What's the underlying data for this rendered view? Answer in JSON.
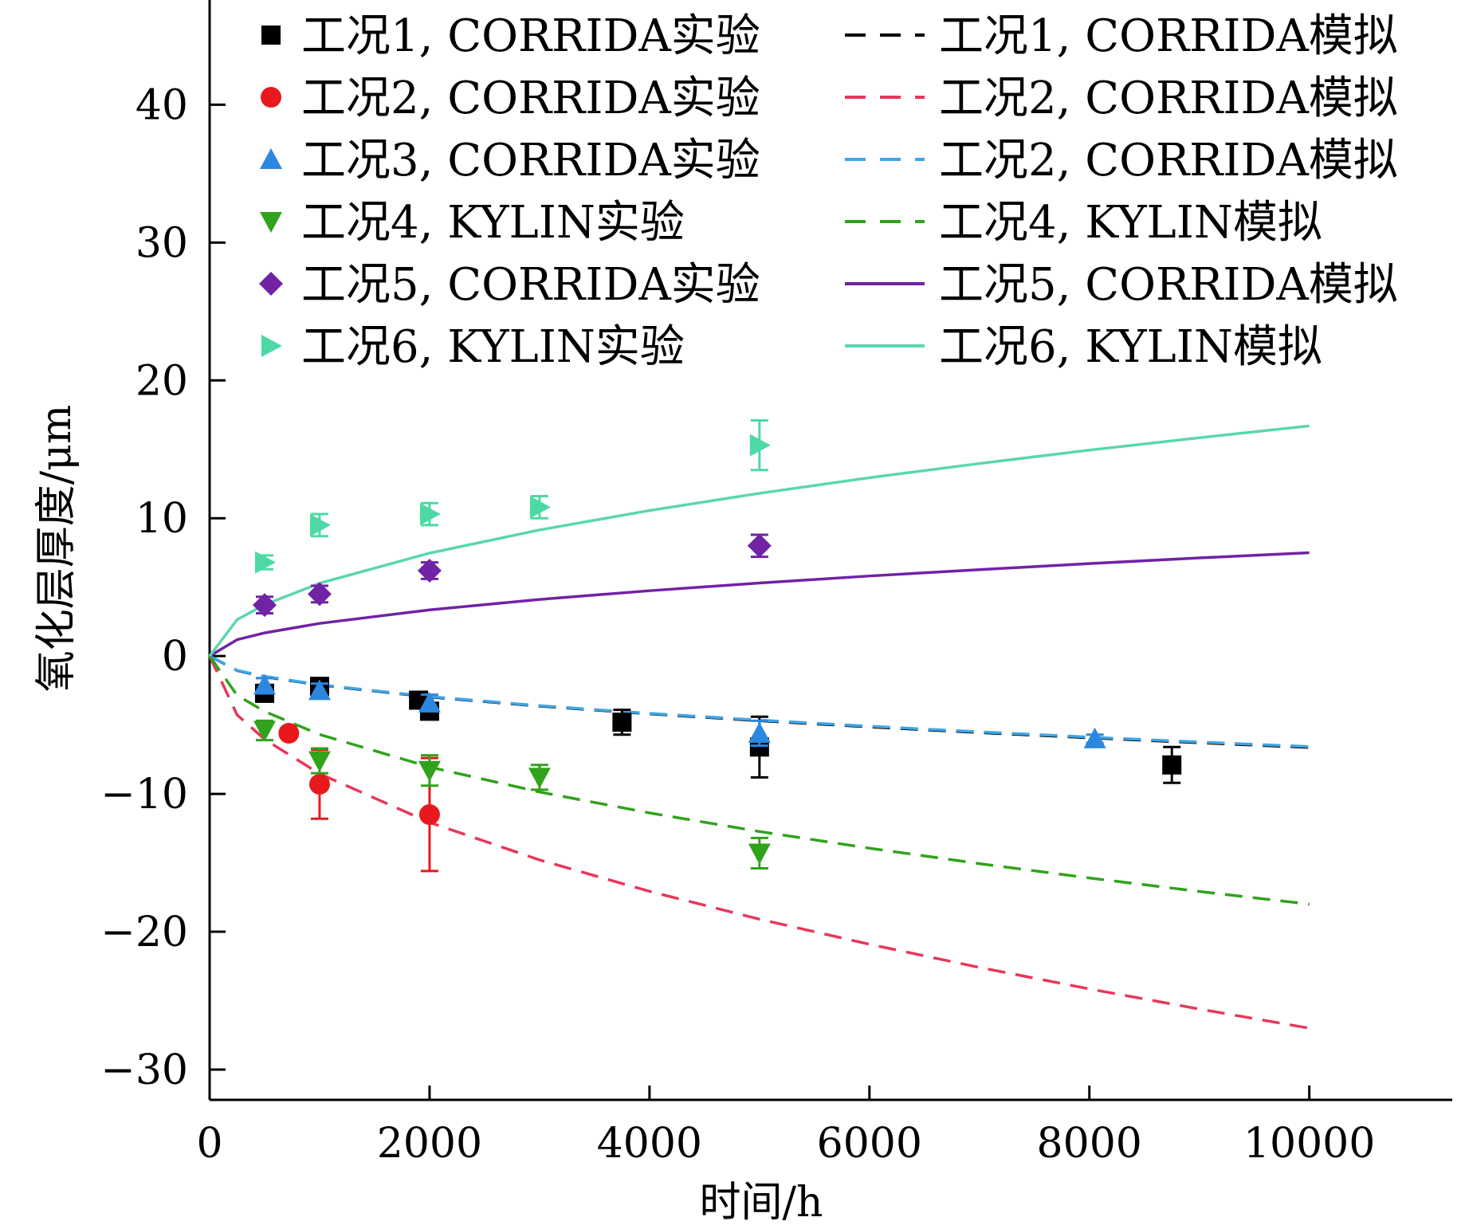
{
  "chart_data": {
    "type": "scatter",
    "xlabel": "时间/h",
    "ylabel": "氧化层厚度/μm",
    "xlim": [
      0,
      11300
    ],
    "ylim": [
      -32.2,
      47.6
    ],
    "x_ticks": [
      0,
      2000,
      4000,
      6000,
      8000,
      10000
    ],
    "x_tick_labels": [
      "0",
      "2000",
      "4000",
      "6000",
      "8000",
      "10000"
    ],
    "y_ticks": [
      -30,
      -20,
      -10,
      0,
      10,
      20,
      30,
      40
    ],
    "y_tick_labels": [
      "−30",
      "−20",
      "−10",
      "0",
      "10",
      "20",
      "30",
      "40"
    ],
    "grid": false,
    "legend_position": "top",
    "experiments": [
      {
        "name": "工况1, CORRIDA实验",
        "color": "#000000",
        "marker": "square",
        "points": [
          {
            "x": 500,
            "y": -2.7,
            "err": 0.6
          },
          {
            "x": 1000,
            "y": -2.2,
            "err": 0.6
          },
          {
            "x": 1900,
            "y": -3.2,
            "err": 0.5
          },
          {
            "x": 2000,
            "y": -4.0,
            "err": 0.6
          },
          {
            "x": 3750,
            "y": -4.8,
            "err": 0.9
          },
          {
            "x": 5000,
            "y": -6.6,
            "err": 2.2
          },
          {
            "x": 8750,
            "y": -7.9,
            "err": 1.3
          }
        ]
      },
      {
        "name": "工况2, CORRIDA实验",
        "color": "#e8191d",
        "marker": "circle",
        "points": [
          {
            "x": 720,
            "y": -5.6,
            "err": 0.3
          },
          {
            "x": 1000,
            "y": -9.3,
            "err": 2.5
          },
          {
            "x": 2000,
            "y": -11.5,
            "err": 4.1
          }
        ]
      },
      {
        "name": "工况3, CORRIDA实验",
        "color": "#2b87df",
        "marker": "triangle-up",
        "points": [
          {
            "x": 500,
            "y": -2.1,
            "err": 0.5
          },
          {
            "x": 1000,
            "y": -2.5,
            "err": 0.5
          },
          {
            "x": 2000,
            "y": -3.4,
            "err": 0.6
          },
          {
            "x": 5000,
            "y": -5.6,
            "err": 0.9
          },
          {
            "x": 8050,
            "y": -6.0,
            "err": 0.3
          }
        ]
      },
      {
        "name": "工况4, KYLIN实验",
        "color": "#31a21c",
        "marker": "triangle-down",
        "points": [
          {
            "x": 500,
            "y": -5.4,
            "err": 0.7
          },
          {
            "x": 1000,
            "y": -7.6,
            "err": 0.9
          },
          {
            "x": 2000,
            "y": -8.3,
            "err": 1.1
          },
          {
            "x": 3000,
            "y": -8.8,
            "err": 0.9
          },
          {
            "x": 5000,
            "y": -14.3,
            "err": 1.1
          }
        ]
      },
      {
        "name": "工况5, CORRIDA实验",
        "color": "#7122a5",
        "marker": "diamond",
        "points": [
          {
            "x": 500,
            "y": 3.7,
            "err": 0.6
          },
          {
            "x": 1000,
            "y": 4.5,
            "err": 0.6
          },
          {
            "x": 2000,
            "y": 6.2,
            "err": 0.6
          },
          {
            "x": 5000,
            "y": 8.0,
            "err": 0.8
          }
        ]
      },
      {
        "name": "工况6, KYLIN实验",
        "color": "#4dd9a5",
        "marker": "triangle-right",
        "points": [
          {
            "x": 500,
            "y": 6.8,
            "err": 0.5
          },
          {
            "x": 1000,
            "y": 9.5,
            "err": 0.8
          },
          {
            "x": 2000,
            "y": 10.3,
            "err": 0.8
          },
          {
            "x": 3000,
            "y": 10.8,
            "err": 0.8
          },
          {
            "x": 5000,
            "y": 15.3,
            "err": 1.8
          }
        ]
      }
    ],
    "simulations": [
      {
        "name": "工况1, CORRIDA模拟",
        "color": "#000000",
        "style": "dashed",
        "x": [
          0,
          250,
          500,
          1000,
          2000,
          3000,
          4000,
          5000,
          6000,
          7000,
          8000,
          9000,
          10000
        ],
        "y": [
          0,
          -1.05,
          -1.5,
          -2.1,
          -2.97,
          -3.63,
          -4.19,
          -4.69,
          -5.14,
          -5.55,
          -5.93,
          -6.29,
          -6.63
        ]
      },
      {
        "name": "工况2, CORRIDA模拟",
        "color": "#e8375b",
        "style": "dashed",
        "x": [
          0,
          250,
          500,
          1000,
          2000,
          3000,
          4000,
          5000,
          6000,
          7000,
          8000,
          9000,
          10000
        ],
        "y": [
          0,
          -4.27,
          -6.04,
          -8.54,
          -12.07,
          -14.79,
          -17.07,
          -19.09,
          -20.91,
          -22.59,
          -24.15,
          -25.61,
          -27.0
        ]
      },
      {
        "name": "工况2, CORRIDA模拟",
        "color": "#3ea5e8",
        "style": "dashed",
        "x": [
          0,
          250,
          500,
          1000,
          2000,
          3000,
          4000,
          5000,
          6000,
          7000,
          8000,
          9000,
          10000
        ],
        "y": [
          0,
          -1.04,
          -1.47,
          -2.08,
          -2.94,
          -3.6,
          -4.16,
          -4.65,
          -5.09,
          -5.5,
          -5.88,
          -6.24,
          -6.57
        ]
      },
      {
        "name": "工况4, KYLIN模拟",
        "color": "#31a21c",
        "style": "dashed",
        "x": [
          0,
          250,
          500,
          1000,
          2000,
          3000,
          4000,
          5000,
          6000,
          7000,
          8000,
          9000,
          10000
        ],
        "y": [
          0,
          -2.85,
          -4.02,
          -5.69,
          -8.05,
          -9.86,
          -11.38,
          -12.73,
          -13.94,
          -15.06,
          -16.1,
          -17.08,
          -18.0
        ]
      },
      {
        "name": "工况5, CORRIDA模拟",
        "color": "#7122a5",
        "style": "solid",
        "x": [
          0,
          250,
          500,
          1000,
          2000,
          3000,
          4000,
          5000,
          6000,
          7000,
          8000,
          9000,
          10000
        ],
        "y": [
          0,
          1.19,
          1.68,
          2.37,
          3.35,
          4.11,
          4.74,
          5.3,
          5.81,
          6.27,
          6.71,
          7.12,
          7.5
        ]
      },
      {
        "name": "工况6, KYLIN模拟",
        "color": "#5ad6b0",
        "style": "solid",
        "x": [
          0,
          250,
          500,
          1000,
          2000,
          3000,
          4000,
          5000,
          6000,
          7000,
          8000,
          9000,
          10000
        ],
        "y": [
          0,
          2.64,
          3.73,
          5.28,
          7.47,
          9.15,
          10.56,
          11.81,
          12.94,
          13.97,
          14.94,
          15.84,
          16.7
        ]
      }
    ]
  }
}
